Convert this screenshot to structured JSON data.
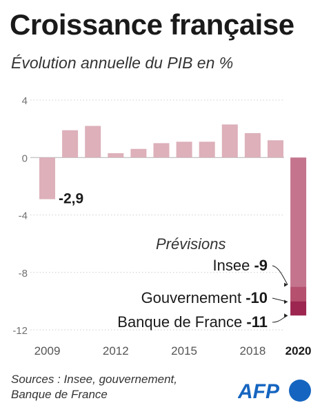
{
  "title": "Croissance française",
  "subtitle": "Évolution annuelle du PIB en %",
  "forecast_heading": "Prévisions",
  "sources": [
    "Sources : Insee, gouvernement,",
    "Banque de France"
  ],
  "logo_text": "AFP",
  "colors": {
    "bar": "#ddb0ba",
    "bar_2020": "#c4758d",
    "bar_gov": "#b5506f",
    "bar_bdf": "#9c2650",
    "text": "#1a1a1a",
    "axis": "#707070",
    "grid": "#cccccc",
    "logo_blue": "#1565c0"
  },
  "chart_data": {
    "type": "bar",
    "title": "Croissance française",
    "subtitle": "Évolution annuelle du PIB en %",
    "categories": [
      "2009",
      "2010",
      "2011",
      "2012",
      "2013",
      "2014",
      "2015",
      "2016",
      "2017",
      "2018",
      "2019",
      "2020"
    ],
    "values": [
      -2.9,
      1.9,
      2.2,
      0.3,
      0.6,
      1.0,
      1.1,
      1.1,
      2.3,
      1.7,
      1.2,
      -9
    ],
    "data_labels": [
      {
        "category": "2009",
        "text": "-2,9"
      }
    ],
    "x_tick_labels": [
      "2009",
      "2012",
      "2015",
      "2018",
      "2020"
    ],
    "y_ticks": [
      4,
      0,
      -4,
      -8,
      -12
    ],
    "ylim": [
      -12,
      4
    ],
    "grid": true,
    "forecasts_2020": [
      {
        "name": "Insee",
        "value": -9,
        "label": "-9"
      },
      {
        "name": "Gouvernement",
        "value": -10,
        "label": "-10"
      },
      {
        "name": "Banque de France",
        "value": -11,
        "label": "-11"
      }
    ]
  }
}
